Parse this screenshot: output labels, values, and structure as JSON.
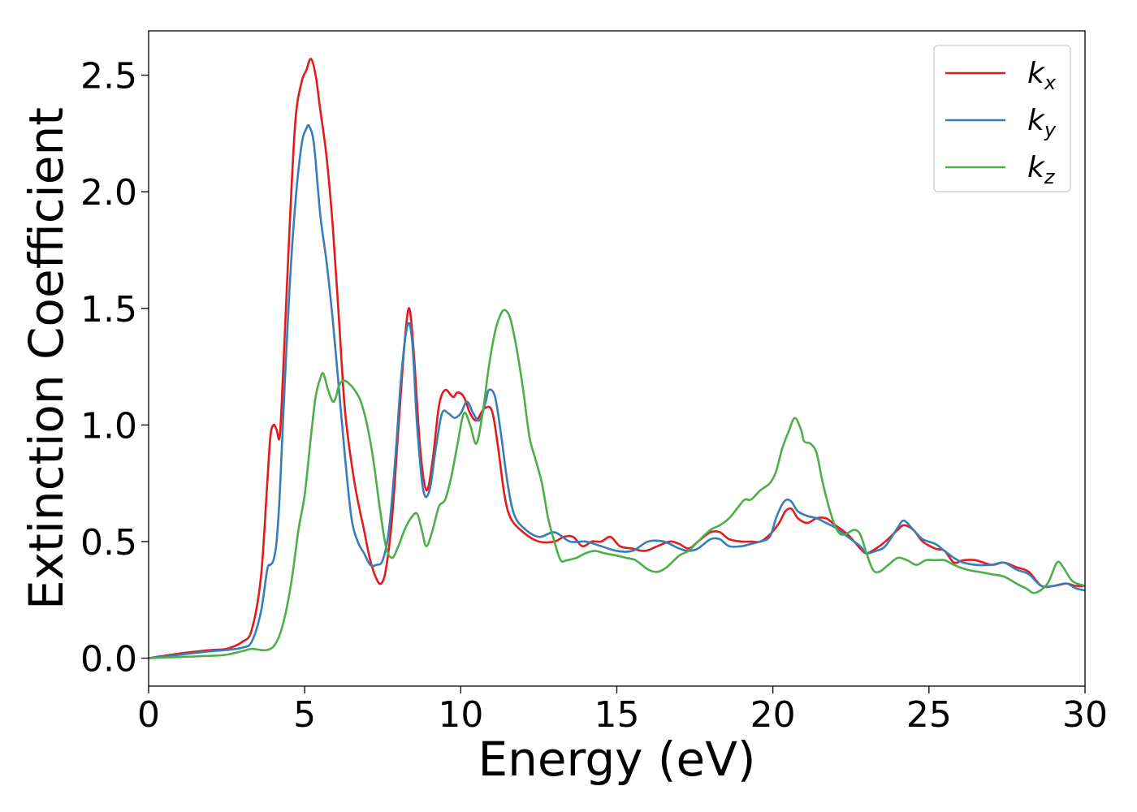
{
  "chart_data": {
    "type": "line",
    "xlabel": "Energy (eV)",
    "ylabel": "Extinction Coefficient",
    "xlim": [
      0,
      30
    ],
    "ylim": [
      -0.12,
      2.69
    ],
    "xticks": [
      0,
      5,
      10,
      15,
      20,
      25,
      30
    ],
    "xtick_labels": [
      "0",
      "5",
      "10",
      "15",
      "20",
      "25",
      "30"
    ],
    "yticks": [
      0.0,
      0.5,
      1.0,
      1.5,
      2.0,
      2.5
    ],
    "ytick_labels": [
      "0.0",
      "0.5",
      "1.0",
      "1.5",
      "2.0",
      "2.5"
    ],
    "grid": false,
    "legend_position": "top-right",
    "series": [
      {
        "name": "kx",
        "label_base": "k",
        "label_sub": "x",
        "color": "#e41a1c",
        "x": [
          0,
          1,
          2,
          2.5,
          3,
          3.3,
          3.6,
          3.8,
          3.9,
          4.0,
          4.1,
          4.2,
          4.3,
          4.5,
          4.7,
          4.9,
          5.05,
          5.2,
          5.35,
          5.5,
          5.7,
          5.9,
          6.1,
          6.3,
          6.6,
          6.9,
          7.1,
          7.3,
          7.45,
          7.6,
          7.8,
          8.0,
          8.2,
          8.35,
          8.5,
          8.7,
          8.9,
          9.1,
          9.3,
          9.5,
          9.75,
          9.9,
          10.1,
          10.3,
          10.5,
          10.75,
          11.0,
          11.2,
          11.4,
          11.6,
          12.0,
          12.5,
          13.0,
          13.3,
          13.6,
          13.9,
          14.2,
          14.5,
          14.8,
          15.1,
          15.5,
          15.9,
          16.3,
          16.7,
          17.0,
          17.3,
          17.6,
          18.0,
          18.3,
          18.6,
          19.0,
          19.3,
          19.6,
          19.9,
          20.2,
          20.4,
          20.6,
          20.8,
          21.1,
          21.4,
          21.7,
          22.0,
          22.4,
          22.8,
          23.0,
          23.3,
          23.6,
          24.0,
          24.2,
          24.5,
          24.8,
          25.2,
          25.5,
          25.8,
          26.1,
          26.5,
          27.0,
          27.4,
          27.8,
          28.2,
          28.6,
          29.0,
          29.4,
          29.7,
          30.0
        ],
        "y": [
          0.0,
          0.02,
          0.035,
          0.04,
          0.07,
          0.12,
          0.35,
          0.75,
          0.95,
          1.0,
          0.98,
          0.95,
          1.2,
          1.8,
          2.3,
          2.47,
          2.52,
          2.57,
          2.5,
          2.35,
          2.15,
          1.85,
          1.45,
          1.05,
          0.75,
          0.55,
          0.42,
          0.34,
          0.32,
          0.38,
          0.6,
          0.98,
          1.35,
          1.5,
          1.3,
          0.9,
          0.72,
          0.85,
          1.08,
          1.15,
          1.12,
          1.14,
          1.12,
          1.05,
          1.02,
          1.07,
          1.06,
          0.9,
          0.7,
          0.6,
          0.54,
          0.5,
          0.5,
          0.52,
          0.52,
          0.48,
          0.5,
          0.5,
          0.52,
          0.48,
          0.47,
          0.46,
          0.48,
          0.5,
          0.49,
          0.47,
          0.5,
          0.54,
          0.54,
          0.51,
          0.5,
          0.5,
          0.5,
          0.53,
          0.58,
          0.63,
          0.64,
          0.6,
          0.58,
          0.6,
          0.6,
          0.57,
          0.53,
          0.47,
          0.45,
          0.47,
          0.5,
          0.55,
          0.57,
          0.55,
          0.5,
          0.47,
          0.46,
          0.41,
          0.42,
          0.42,
          0.4,
          0.41,
          0.39,
          0.37,
          0.31,
          0.31,
          0.32,
          0.31,
          0.31
        ]
      },
      {
        "name": "ky",
        "label_base": "k",
        "label_sub": "y",
        "color": "#377eb8",
        "x": [
          0,
          1,
          2,
          2.5,
          3,
          3.3,
          3.6,
          3.8,
          3.9,
          4.0,
          4.1,
          4.2,
          4.3,
          4.5,
          4.7,
          4.9,
          5.05,
          5.15,
          5.3,
          5.5,
          5.7,
          5.9,
          6.1,
          6.3,
          6.5,
          6.7,
          6.9,
          7.1,
          7.3,
          7.5,
          7.7,
          7.9,
          8.1,
          8.3,
          8.45,
          8.6,
          8.8,
          9.0,
          9.2,
          9.4,
          9.6,
          9.8,
          10.0,
          10.2,
          10.4,
          10.6,
          10.8,
          10.9,
          11.1,
          11.3,
          11.5,
          11.7,
          12.0,
          12.5,
          13.0,
          13.5,
          14.0,
          14.5,
          15.0,
          15.5,
          16.0,
          16.5,
          17.0,
          17.3,
          17.6,
          18.0,
          18.3,
          18.6,
          19.0,
          19.3,
          19.6,
          19.9,
          20.1,
          20.3,
          20.45,
          20.6,
          20.8,
          21.1,
          21.4,
          21.7,
          22.0,
          22.4,
          22.8,
          23.0,
          23.3,
          23.6,
          24.0,
          24.2,
          24.5,
          24.8,
          25.2,
          25.5,
          25.8,
          26.1,
          26.5,
          27.0,
          27.4,
          27.8,
          28.2,
          28.6,
          29.0,
          29.4,
          29.7,
          30.0
        ],
        "y": [
          0.0,
          0.015,
          0.03,
          0.035,
          0.045,
          0.07,
          0.2,
          0.38,
          0.4,
          0.42,
          0.5,
          0.7,
          1.0,
          1.55,
          1.95,
          2.2,
          2.27,
          2.28,
          2.2,
          1.9,
          1.7,
          1.45,
          1.15,
          0.85,
          0.6,
          0.5,
          0.45,
          0.4,
          0.4,
          0.42,
          0.55,
          0.85,
          1.22,
          1.43,
          1.35,
          1.0,
          0.72,
          0.72,
          0.9,
          1.05,
          1.05,
          1.03,
          1.05,
          1.1,
          1.05,
          1.02,
          1.1,
          1.15,
          1.12,
          0.95,
          0.75,
          0.62,
          0.56,
          0.52,
          0.54,
          0.5,
          0.5,
          0.48,
          0.46,
          0.46,
          0.5,
          0.5,
          0.47,
          0.46,
          0.47,
          0.51,
          0.51,
          0.48,
          0.48,
          0.49,
          0.5,
          0.52,
          0.6,
          0.66,
          0.68,
          0.67,
          0.63,
          0.61,
          0.6,
          0.58,
          0.56,
          0.52,
          0.48,
          0.45,
          0.46,
          0.48,
          0.56,
          0.59,
          0.55,
          0.51,
          0.49,
          0.46,
          0.43,
          0.41,
          0.4,
          0.4,
          0.41,
          0.38,
          0.36,
          0.31,
          0.31,
          0.32,
          0.3,
          0.29
        ]
      },
      {
        "name": "kz",
        "label_base": "k",
        "label_sub": "z",
        "color": "#4daf4a",
        "x": [
          0,
          1,
          2,
          2.5,
          3,
          3.3,
          3.6,
          3.8,
          4.0,
          4.2,
          4.4,
          4.6,
          4.8,
          5.0,
          5.2,
          5.35,
          5.5,
          5.6,
          5.75,
          5.9,
          6.0,
          6.1,
          6.25,
          6.4,
          6.6,
          6.8,
          7.0,
          7.2,
          7.4,
          7.6,
          7.8,
          8.0,
          8.2,
          8.4,
          8.6,
          8.75,
          8.9,
          9.1,
          9.3,
          9.5,
          9.7,
          9.9,
          10.1,
          10.3,
          10.5,
          10.7,
          10.9,
          11.1,
          11.3,
          11.45,
          11.6,
          11.8,
          12.0,
          12.2,
          12.4,
          12.6,
          12.8,
          13.0,
          13.2,
          13.4,
          13.7,
          14.0,
          14.3,
          14.6,
          15.0,
          15.3,
          15.6,
          16.0,
          16.3,
          16.6,
          17.0,
          17.3,
          17.6,
          18.0,
          18.3,
          18.6,
          18.9,
          19.1,
          19.3,
          19.6,
          19.9,
          20.1,
          20.3,
          20.5,
          20.7,
          20.9,
          21.0,
          21.2,
          21.4,
          21.6,
          21.9,
          22.1,
          22.3,
          22.6,
          22.8,
          23.0,
          23.2,
          23.4,
          23.7,
          24.0,
          24.3,
          24.6,
          24.9,
          25.2,
          25.5,
          25.8,
          26.2,
          26.6,
          27.0,
          27.4,
          27.8,
          28.1,
          28.4,
          28.8,
          29.1,
          29.3,
          29.6,
          30.0
        ],
        "y": [
          0.0,
          0.005,
          0.01,
          0.015,
          0.03,
          0.04,
          0.035,
          0.035,
          0.05,
          0.1,
          0.2,
          0.35,
          0.55,
          0.7,
          0.95,
          1.12,
          1.2,
          1.22,
          1.15,
          1.1,
          1.12,
          1.17,
          1.19,
          1.18,
          1.15,
          1.1,
          1.0,
          0.85,
          0.65,
          0.48,
          0.43,
          0.48,
          0.55,
          0.6,
          0.62,
          0.55,
          0.48,
          0.55,
          0.65,
          0.68,
          0.78,
          0.92,
          1.05,
          1.0,
          0.92,
          1.05,
          1.25,
          1.4,
          1.48,
          1.49,
          1.45,
          1.32,
          1.15,
          0.95,
          0.85,
          0.75,
          0.6,
          0.5,
          0.42,
          0.42,
          0.43,
          0.45,
          0.46,
          0.45,
          0.44,
          0.43,
          0.42,
          0.38,
          0.37,
          0.39,
          0.44,
          0.46,
          0.5,
          0.55,
          0.57,
          0.6,
          0.65,
          0.68,
          0.68,
          0.72,
          0.75,
          0.8,
          0.9,
          0.97,
          1.03,
          0.98,
          0.93,
          0.92,
          0.88,
          0.75,
          0.6,
          0.54,
          0.53,
          0.55,
          0.53,
          0.45,
          0.38,
          0.37,
          0.4,
          0.43,
          0.42,
          0.4,
          0.42,
          0.42,
          0.42,
          0.4,
          0.38,
          0.37,
          0.36,
          0.35,
          0.32,
          0.3,
          0.28,
          0.32,
          0.41,
          0.39,
          0.33,
          0.31
        ]
      }
    ]
  }
}
